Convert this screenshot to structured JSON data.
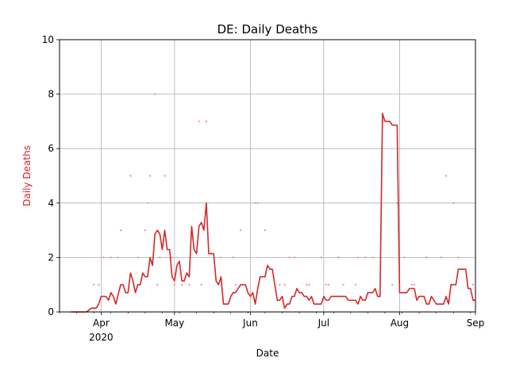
{
  "chart_data": {
    "type": "line",
    "title": "DE: Daily Deaths",
    "xlabel": "Date",
    "ylabel": "Daily Deaths",
    "ylabel_color": "#d62728",
    "line_color": "#d62728",
    "scatter_color": "#f08080",
    "grid": true,
    "xlim": [
      "2020-03-15",
      "2020-09-01"
    ],
    "ylim": [
      0,
      10
    ],
    "yticks": [
      0,
      2,
      4,
      6,
      8,
      10
    ],
    "xticks": [
      {
        "date": "2020-04-01",
        "label": "Apr",
        "sublabel": "2020"
      },
      {
        "date": "2020-05-01",
        "label": "May",
        "sublabel": ""
      },
      {
        "date": "2020-06-01",
        "label": "Jun",
        "sublabel": ""
      },
      {
        "date": "2020-07-01",
        "label": "Jul",
        "sublabel": ""
      },
      {
        "date": "2020-08-01",
        "label": "Aug",
        "sublabel": ""
      },
      {
        "date": "2020-09-01",
        "label": "Sep",
        "sublabel": ""
      }
    ],
    "series": [
      {
        "kind": "line",
        "points": [
          [
            "2020-03-20",
            0
          ],
          [
            "2020-03-22",
            0
          ],
          [
            "2020-03-24",
            0
          ],
          [
            "2020-03-26",
            0
          ],
          [
            "2020-03-28",
            0.14
          ],
          [
            "2020-03-30",
            0.14
          ],
          [
            "2020-03-31",
            0.29
          ],
          [
            "2020-04-01",
            0.57
          ],
          [
            "2020-04-03",
            0.57
          ],
          [
            "2020-04-04",
            0.43
          ],
          [
            "2020-04-05",
            0.71
          ],
          [
            "2020-04-06",
            0.57
          ],
          [
            "2020-04-07",
            0.29
          ],
          [
            "2020-04-09",
            1.0
          ],
          [
            "2020-04-10",
            1.0
          ],
          [
            "2020-04-11",
            0.71
          ],
          [
            "2020-04-12",
            0.71
          ],
          [
            "2020-04-13",
            1.43
          ],
          [
            "2020-04-14",
            1.14
          ],
          [
            "2020-04-15",
            0.71
          ],
          [
            "2020-04-16",
            1.0
          ],
          [
            "2020-04-17",
            1.0
          ],
          [
            "2020-04-18",
            1.43
          ],
          [
            "2020-04-19",
            1.29
          ],
          [
            "2020-04-20",
            1.29
          ],
          [
            "2020-04-21",
            2.0
          ],
          [
            "2020-04-22",
            1.71
          ],
          [
            "2020-04-23",
            2.86
          ],
          [
            "2020-04-24",
            3.0
          ],
          [
            "2020-04-25",
            2.86
          ],
          [
            "2020-04-26",
            2.29
          ],
          [
            "2020-04-27",
            3.0
          ],
          [
            "2020-04-28",
            2.29
          ],
          [
            "2020-04-29",
            2.29
          ],
          [
            "2020-04-30",
            1.29
          ],
          [
            "2020-05-01",
            1.14
          ],
          [
            "2020-05-02",
            1.71
          ],
          [
            "2020-05-03",
            1.86
          ],
          [
            "2020-05-04",
            1.14
          ],
          [
            "2020-05-05",
            1.14
          ],
          [
            "2020-05-06",
            1.43
          ],
          [
            "2020-05-07",
            1.29
          ],
          [
            "2020-05-08",
            3.14
          ],
          [
            "2020-05-09",
            2.29
          ],
          [
            "2020-05-10",
            2.14
          ],
          [
            "2020-05-11",
            3.14
          ],
          [
            "2020-05-12",
            3.29
          ],
          [
            "2020-05-13",
            3.0
          ],
          [
            "2020-05-14",
            4.0
          ],
          [
            "2020-05-15",
            2.14
          ],
          [
            "2020-05-17",
            2.14
          ],
          [
            "2020-05-18",
            1.14
          ],
          [
            "2020-05-19",
            1.0
          ],
          [
            "2020-05-20",
            1.29
          ],
          [
            "2020-05-21",
            0.29
          ],
          [
            "2020-05-23",
            0.29
          ],
          [
            "2020-05-24",
            0.57
          ],
          [
            "2020-05-25",
            0.71
          ],
          [
            "2020-05-26",
            0.71
          ],
          [
            "2020-05-27",
            0.86
          ],
          [
            "2020-05-28",
            1.0
          ],
          [
            "2020-05-30",
            1.0
          ],
          [
            "2020-05-31",
            0.71
          ],
          [
            "2020-06-01",
            0.57
          ],
          [
            "2020-06-02",
            0.71
          ],
          [
            "2020-06-03",
            0.29
          ],
          [
            "2020-06-04",
            0.86
          ],
          [
            "2020-06-05",
            1.29
          ],
          [
            "2020-06-07",
            1.29
          ],
          [
            "2020-06-08",
            1.71
          ],
          [
            "2020-06-09",
            1.57
          ],
          [
            "2020-06-10",
            1.57
          ],
          [
            "2020-06-11",
            1.0
          ],
          [
            "2020-06-12",
            0.43
          ],
          [
            "2020-06-13",
            0.43
          ],
          [
            "2020-06-14",
            0.57
          ],
          [
            "2020-06-15",
            0.14
          ],
          [
            "2020-06-16",
            0.29
          ],
          [
            "2020-06-17",
            0.29
          ],
          [
            "2020-06-18",
            0.57
          ],
          [
            "2020-06-19",
            0.57
          ],
          [
            "2020-06-20",
            0.86
          ],
          [
            "2020-06-21",
            0.71
          ],
          [
            "2020-06-22",
            0.71
          ],
          [
            "2020-06-23",
            0.57
          ],
          [
            "2020-06-24",
            0.57
          ],
          [
            "2020-06-25",
            0.43
          ],
          [
            "2020-06-26",
            0.57
          ],
          [
            "2020-06-27",
            0.29
          ],
          [
            "2020-06-30",
            0.29
          ],
          [
            "2020-07-01",
            0.57
          ],
          [
            "2020-07-02",
            0.43
          ],
          [
            "2020-07-03",
            0.43
          ],
          [
            "2020-07-04",
            0.57
          ],
          [
            "2020-07-10",
            0.57
          ],
          [
            "2020-07-11",
            0.43
          ],
          [
            "2020-07-14",
            0.43
          ],
          [
            "2020-07-15",
            0.29
          ],
          [
            "2020-07-16",
            0.57
          ],
          [
            "2020-07-17",
            0.43
          ],
          [
            "2020-07-18",
            0.43
          ],
          [
            "2020-07-19",
            0.71
          ],
          [
            "2020-07-21",
            0.71
          ],
          [
            "2020-07-22",
            0.86
          ],
          [
            "2020-07-23",
            0.57
          ],
          [
            "2020-07-24",
            0.57
          ],
          [
            "2020-07-25",
            7.29
          ],
          [
            "2020-07-26",
            7.0
          ],
          [
            "2020-07-28",
            7.0
          ],
          [
            "2020-07-29",
            6.86
          ],
          [
            "2020-07-31",
            6.86
          ],
          [
            "2020-08-01",
            0.71
          ],
          [
            "2020-08-04",
            0.71
          ],
          [
            "2020-08-05",
            0.86
          ],
          [
            "2020-08-07",
            0.86
          ],
          [
            "2020-08-08",
            0.43
          ],
          [
            "2020-08-09",
            0.57
          ],
          [
            "2020-08-11",
            0.57
          ],
          [
            "2020-08-12",
            0.29
          ],
          [
            "2020-08-13",
            0.29
          ],
          [
            "2020-08-14",
            0.57
          ],
          [
            "2020-08-15",
            0.43
          ],
          [
            "2020-08-16",
            0.29
          ],
          [
            "2020-08-19",
            0.29
          ],
          [
            "2020-08-20",
            0.57
          ],
          [
            "2020-08-21",
            0.29
          ],
          [
            "2020-08-22",
            1.0
          ],
          [
            "2020-08-24",
            1.0
          ],
          [
            "2020-08-25",
            1.57
          ],
          [
            "2020-08-28",
            1.57
          ],
          [
            "2020-08-29",
            0.86
          ],
          [
            "2020-08-30",
            0.86
          ],
          [
            "2020-08-31",
            0.43
          ],
          [
            "2020-09-01",
            0.43
          ]
        ]
      },
      {
        "kind": "scatter",
        "points": [
          [
            "2020-03-20",
            0
          ],
          [
            "2020-03-29",
            1
          ],
          [
            "2020-03-31",
            1
          ],
          [
            "2020-04-02",
            2
          ],
          [
            "2020-04-05",
            2
          ],
          [
            "2020-04-08",
            2
          ],
          [
            "2020-04-09",
            3
          ],
          [
            "2020-04-13",
            5
          ],
          [
            "2020-04-16",
            2
          ],
          [
            "2020-04-19",
            3
          ],
          [
            "2020-04-20",
            4
          ],
          [
            "2020-04-21",
            5
          ],
          [
            "2020-04-23",
            8
          ],
          [
            "2020-04-24",
            1
          ],
          [
            "2020-04-25",
            2
          ],
          [
            "2020-04-27",
            5
          ],
          [
            "2020-04-30",
            2
          ],
          [
            "2020-05-01",
            1
          ],
          [
            "2020-05-04",
            1
          ],
          [
            "2020-05-07",
            1
          ],
          [
            "2020-05-11",
            7
          ],
          [
            "2020-05-12",
            1
          ],
          [
            "2020-05-14",
            7
          ],
          [
            "2020-05-20",
            2
          ],
          [
            "2020-05-25",
            2
          ],
          [
            "2020-05-26",
            1
          ],
          [
            "2020-05-28",
            3
          ],
          [
            "2020-06-03",
            4
          ],
          [
            "2020-06-04",
            4
          ],
          [
            "2020-06-07",
            3
          ],
          [
            "2020-06-13",
            1
          ],
          [
            "2020-06-15",
            1
          ],
          [
            "2020-06-17",
            2
          ],
          [
            "2020-06-19",
            2
          ],
          [
            "2020-06-24",
            1
          ],
          [
            "2020-06-25",
            1
          ],
          [
            "2020-06-30",
            2
          ],
          [
            "2020-07-02",
            1
          ],
          [
            "2020-07-03",
            1
          ],
          [
            "2020-07-07",
            2
          ],
          [
            "2020-07-09",
            1
          ],
          [
            "2020-07-14",
            1
          ],
          [
            "2020-07-15",
            2
          ],
          [
            "2020-07-18",
            2
          ],
          [
            "2020-07-21",
            2
          ],
          [
            "2020-07-25",
            7
          ],
          [
            "2020-07-29",
            1
          ],
          [
            "2020-07-31",
            4
          ],
          [
            "2020-08-03",
            2
          ],
          [
            "2020-08-06",
            1
          ],
          [
            "2020-08-07",
            1
          ],
          [
            "2020-08-12",
            2
          ],
          [
            "2020-08-18",
            2
          ],
          [
            "2020-08-20",
            5
          ],
          [
            "2020-08-23",
            4
          ],
          [
            "2020-08-25",
            2
          ],
          [
            "2020-08-31",
            1
          ]
        ]
      }
    ]
  }
}
